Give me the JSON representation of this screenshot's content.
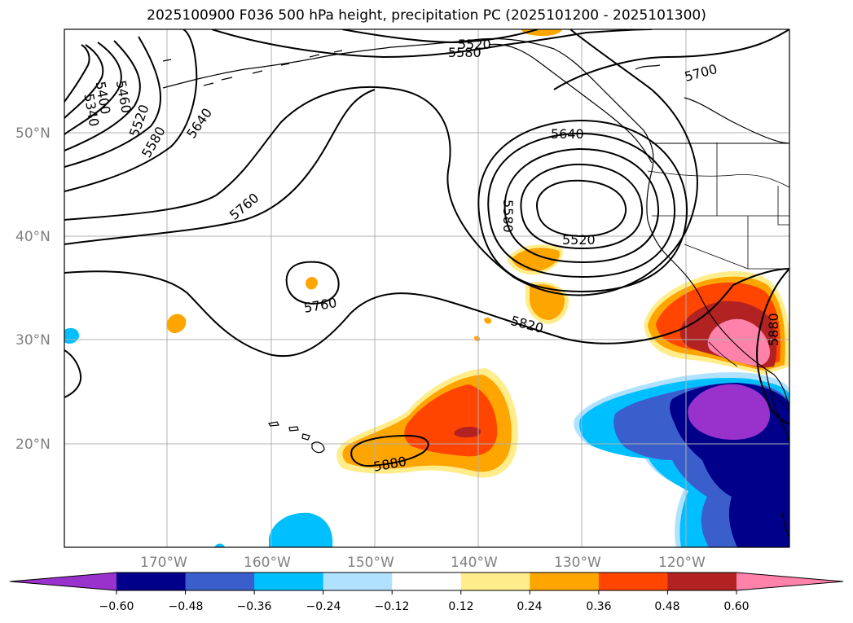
{
  "title": "2025100900 F036 500 hPa height, precipitation PC (2025101200 - 2025101300)",
  "map": {
    "lat_labels": [
      "50°N",
      "40°N",
      "30°N",
      "20°N"
    ],
    "lon_labels": [
      "170°W",
      "160°W",
      "150°W",
      "140°W",
      "130°W",
      "120°W"
    ]
  },
  "contour_labels": [
    "5520",
    "5580",
    "5700",
    "5340",
    "5400",
    "5460",
    "5520",
    "5580",
    "5640",
    "5640",
    "5760",
    "5580",
    "5520",
    "5760",
    "5820",
    "5880",
    "5880"
  ],
  "colorbar": {
    "colors": [
      "#9932cc",
      "#00008b",
      "#3a5fcd",
      "#00bfff",
      "#b0e2ff",
      "#ffffff",
      "#ffec8b",
      "#ffa500",
      "#ff4500",
      "#b22222",
      "#ff82ab"
    ],
    "tick_labels": [
      "−0.60",
      "−0.48",
      "−0.36",
      "−0.24",
      "−0.12",
      "0.12",
      "0.24",
      "0.36",
      "0.48",
      "0.60"
    ]
  }
}
